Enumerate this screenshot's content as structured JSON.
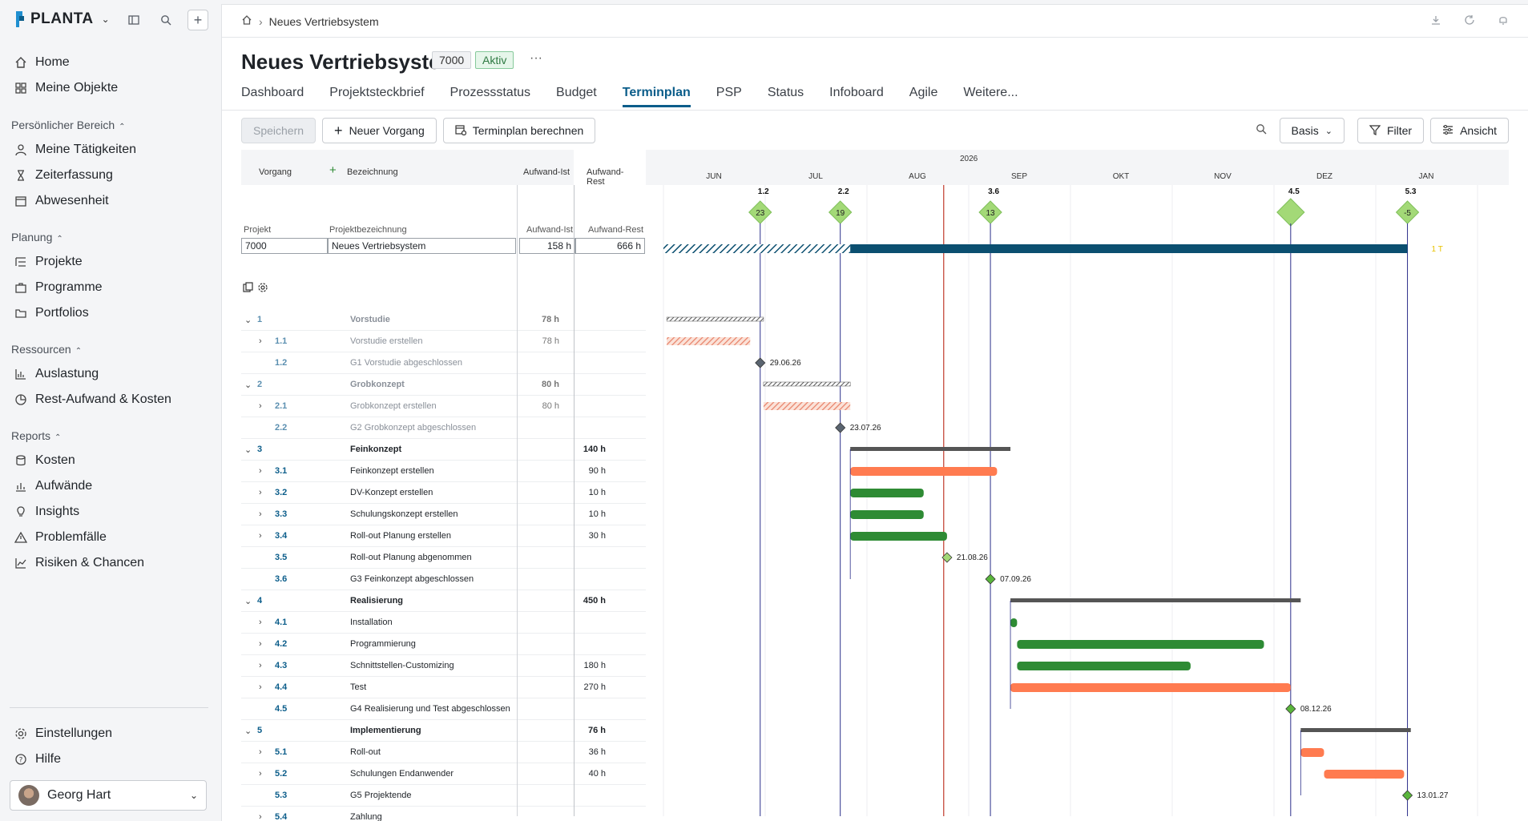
{
  "brand": {
    "name": "PLANTA"
  },
  "sidebar": {
    "top_items": [
      {
        "label": "Home"
      },
      {
        "label": "Meine Objekte"
      }
    ],
    "sections": [
      {
        "title": "Persönlicher Bereich",
        "items": [
          {
            "label": "Meine Tätigkeiten"
          },
          {
            "label": "Zeiterfassung"
          },
          {
            "label": "Abwesenheit"
          }
        ]
      },
      {
        "title": "Planung",
        "items": [
          {
            "label": "Projekte"
          },
          {
            "label": "Programme"
          },
          {
            "label": "Portfolios"
          }
        ]
      },
      {
        "title": "Ressourcen",
        "items": [
          {
            "label": "Auslastung"
          },
          {
            "label": "Rest-Aufwand & Kosten"
          }
        ]
      },
      {
        "title": "Reports",
        "items": [
          {
            "label": "Kosten"
          },
          {
            "label": "Aufwände"
          },
          {
            "label": "Insights"
          },
          {
            "label": "Problemfälle"
          },
          {
            "label": "Risiken & Chancen"
          }
        ]
      }
    ],
    "bottom_items": [
      {
        "label": "Einstellungen"
      },
      {
        "label": "Hilfe"
      }
    ],
    "user": {
      "name": "Georg Hart"
    }
  },
  "header": {
    "breadcrumb": "Neues Vertriebsystem",
    "title": "Neues Vertriebsystem",
    "project_id": "7000",
    "status": "Aktiv",
    "more": "···"
  },
  "tabs": [
    {
      "label": "Dashboard"
    },
    {
      "label": "Projektsteckbrief"
    },
    {
      "label": "Prozessstatus"
    },
    {
      "label": "Budget"
    },
    {
      "label": "Terminplan",
      "active": true
    },
    {
      "label": "PSP"
    },
    {
      "label": "Status"
    },
    {
      "label": "Infoboard"
    },
    {
      "label": "Agile"
    },
    {
      "label": "Weitere..."
    }
  ],
  "toolbar": {
    "save": "Speichern",
    "new_task": "Neuer Vorgang",
    "calc": "Terminplan berechnen",
    "basis": "Basis",
    "filter": "Filter",
    "view": "Ansicht"
  },
  "table": {
    "headers": {
      "vorgang": "Vorgang",
      "bezeichnung": "Bezeichnung",
      "ist": "Aufwand-Ist",
      "rest": "Aufwand-Rest"
    },
    "project_headers": {
      "projekt": "Projekt",
      "bez": "Projektbezeichnung",
      "ist": "Aufwand-Ist",
      "rest": "Aufwand-Rest"
    },
    "project": {
      "id": "7000",
      "name": "Neues Vertriebsystem",
      "ist": "158 h",
      "rest": "666 h"
    },
    "rows": [
      {
        "num": "1",
        "name": "Vorstudie",
        "ist": "78 h",
        "rest": "",
        "phase": true,
        "muted": true
      },
      {
        "num": "1.1",
        "name": "Vorstudie erstellen",
        "ist": "78 h",
        "rest": "",
        "muted": true,
        "exp": true
      },
      {
        "num": "1.2",
        "name": "G1 Vorstudie abgeschlossen",
        "ist": "",
        "rest": "",
        "muted": true
      },
      {
        "num": "2",
        "name": "Grobkonzept",
        "ist": "80 h",
        "rest": "",
        "phase": true,
        "muted": true
      },
      {
        "num": "2.1",
        "name": "Grobkonzept erstellen",
        "ist": "80 h",
        "rest": "",
        "muted": true,
        "exp": true
      },
      {
        "num": "2.2",
        "name": "G2 Grobkonzept abgeschlossen",
        "ist": "",
        "rest": "",
        "muted": true
      },
      {
        "num": "3",
        "name": "Feinkonzept",
        "ist": "",
        "rest": "140 h",
        "phase": true
      },
      {
        "num": "3.1",
        "name": "Feinkonzept erstellen",
        "ist": "",
        "rest": "90 h",
        "exp": true
      },
      {
        "num": "3.2",
        "name": "DV-Konzept erstellen",
        "ist": "",
        "rest": "10 h",
        "exp": true
      },
      {
        "num": "3.3",
        "name": "Schulungskonzept erstellen",
        "ist": "",
        "rest": "10 h",
        "exp": true
      },
      {
        "num": "3.4",
        "name": "Roll-out Planung erstellen",
        "ist": "",
        "rest": "30 h",
        "exp": true
      },
      {
        "num": "3.5",
        "name": "Roll-out Planung abgenommen",
        "ist": "",
        "rest": ""
      },
      {
        "num": "3.6",
        "name": "G3 Feinkonzept abgeschlossen",
        "ist": "",
        "rest": ""
      },
      {
        "num": "4",
        "name": "Realisierung",
        "ist": "",
        "rest": "450 h",
        "phase": true
      },
      {
        "num": "4.1",
        "name": "Installation",
        "ist": "",
        "rest": "",
        "exp": true
      },
      {
        "num": "4.2",
        "name": "Programmierung",
        "ist": "",
        "rest": "",
        "exp": true
      },
      {
        "num": "4.3",
        "name": "Schnittstellen-Customizing",
        "ist": "",
        "rest": "180 h",
        "exp": true
      },
      {
        "num": "4.4",
        "name": "Test",
        "ist": "",
        "rest": "270 h",
        "exp": true
      },
      {
        "num": "4.5",
        "name": "G4 Realisierung und Test abgeschlossen",
        "ist": "",
        "rest": ""
      },
      {
        "num": "5",
        "name": "Implementierung",
        "ist": "",
        "rest": "76 h",
        "phase": true
      },
      {
        "num": "5.1",
        "name": "Roll-out",
        "ist": "",
        "rest": "36 h",
        "exp": true
      },
      {
        "num": "5.2",
        "name": "Schulungen Endanwender",
        "ist": "",
        "rest": "40 h",
        "exp": true
      },
      {
        "num": "5.3",
        "name": "G5 Projektende",
        "ist": "",
        "rest": ""
      },
      {
        "num": "5.4",
        "name": "Zahlung",
        "ist": "",
        "rest": "",
        "exp": true
      }
    ]
  },
  "timeline": {
    "year": "2026",
    "months": [
      "JUN",
      "JUL",
      "AUG",
      "SEP",
      "OKT",
      "NOV",
      "DEZ",
      "JAN"
    ],
    "gate_labels": [
      {
        "label": "1.2",
        "value": "23"
      },
      {
        "label": "2.2",
        "value": "19"
      },
      {
        "label": "3.6",
        "value": "13"
      },
      {
        "label": "4.5",
        "value": ""
      },
      {
        "label": "5.3",
        "value": "-5"
      }
    ],
    "project_bar_end_label": "1 T",
    "dates": [
      "29.06.26",
      "23.07.26",
      "21.08.26",
      "07.09.26",
      "08.12.26",
      "13.01.27"
    ],
    "colors": {
      "done": "#e8836a",
      "critical": "#ff7b50",
      "normal": "#2e8b34",
      "summary": "#555555",
      "project": "#0b4f70",
      "milestone_done": "#5a6470",
      "gate": "#a3d977",
      "today": "#c0392b"
    }
  }
}
